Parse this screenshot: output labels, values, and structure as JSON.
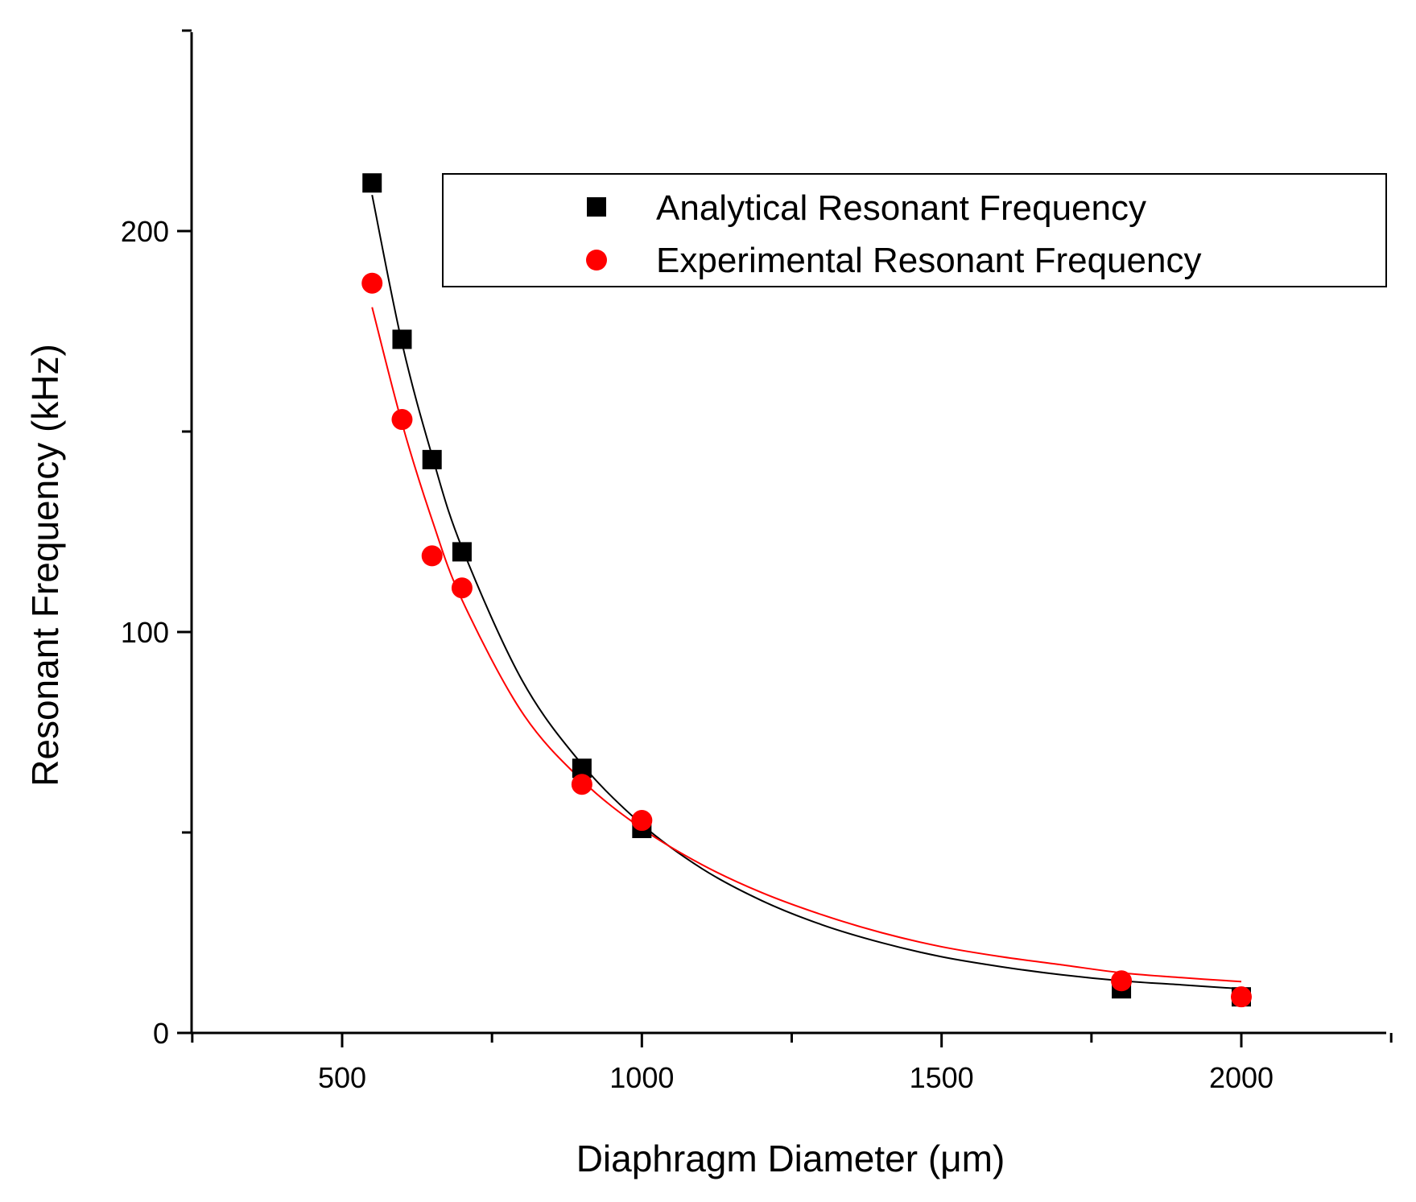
{
  "chart_data": {
    "type": "scatter",
    "title": "",
    "xlabel": "Diaphragm Diameter (μm)",
    "ylabel": "Resonant Frequency (kHz)",
    "xlim": [
      250,
      2250
    ],
    "ylim": [
      0,
      250
    ],
    "xticks": [
      500,
      1000,
      1500,
      2000
    ],
    "yticks": [
      0,
      100,
      200
    ],
    "xtick_labels": [
      "500",
      "1000",
      "1500",
      "2000"
    ],
    "ytick_labels": [
      "0",
      "100",
      "200"
    ],
    "legend_position": "top-right",
    "grid": false,
    "series": [
      {
        "name": "Analytical Resonant Frequency",
        "marker": "square",
        "color": "#000000",
        "x": [
          550,
          600,
          650,
          700,
          900,
          1000,
          1800,
          2000
        ],
        "y": [
          212,
          173,
          143,
          120,
          66,
          51,
          11,
          9
        ],
        "fit_curve": {
          "x": [
            550,
            600,
            650,
            700,
            800,
            900,
            1000,
            1100,
            1200,
            1300,
            1400,
            1500,
            1600,
            1700,
            1800,
            1900,
            2000
          ],
          "y": [
            209,
            172,
            144,
            121,
            88,
            67,
            52,
            41,
            33,
            27,
            22.5,
            19,
            16.5,
            14.5,
            13,
            12,
            11
          ]
        }
      },
      {
        "name": "Experimental Resonant Frequency",
        "marker": "circle",
        "color": "#ff0000",
        "x": [
          550,
          600,
          650,
          700,
          900,
          1000,
          1800,
          2000
        ],
        "y": [
          187,
          153,
          119,
          111,
          62,
          53,
          13,
          9
        ],
        "fit_curve": {
          "x": [
            550,
            600,
            650,
            700,
            800,
            900,
            1000,
            1100,
            1200,
            1300,
            1400,
            1500,
            1600,
            1700,
            1800,
            1900,
            2000
          ],
          "y": [
            181,
            152,
            128,
            108,
            80,
            63,
            51,
            42,
            35,
            29.5,
            25,
            21.5,
            19,
            17,
            15,
            13.8,
            12.8
          ]
        }
      }
    ]
  }
}
